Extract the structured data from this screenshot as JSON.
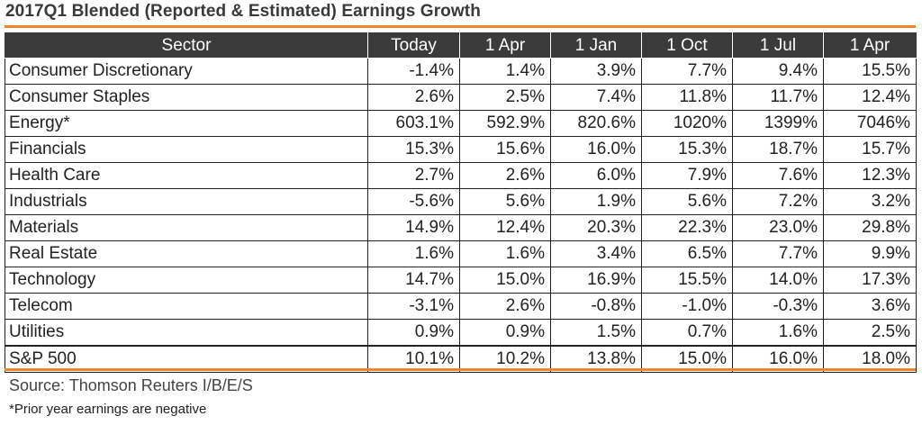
{
  "title": "2017Q1 Blended (Reported & Estimated) Earnings Growth",
  "accent_color": "#f0852f",
  "header_bg": "#3b3b3b",
  "columns": [
    "Sector",
    "Today",
    "1 Apr",
    "1 Jan",
    "1 Oct",
    "1 Jul",
    "1 Apr"
  ],
  "rows": [
    {
      "sector": "Consumer Discretionary",
      "values": [
        "-1.4%",
        "1.4%",
        "3.9%",
        "7.7%",
        "9.4%",
        "15.5%"
      ]
    },
    {
      "sector": "Consumer Staples",
      "values": [
        "2.6%",
        "2.5%",
        "7.4%",
        "11.8%",
        "11.7%",
        "12.4%"
      ]
    },
    {
      "sector": "Energy*",
      "values": [
        "603.1%",
        "592.9%",
        "820.6%",
        "1020%",
        "1399%",
        "7046%"
      ]
    },
    {
      "sector": "Financials",
      "values": [
        "15.3%",
        "15.6%",
        "16.0%",
        "15.3%",
        "18.7%",
        "15.7%"
      ]
    },
    {
      "sector": "Health Care",
      "values": [
        "2.7%",
        "2.6%",
        "6.0%",
        "7.9%",
        "7.6%",
        "12.3%"
      ]
    },
    {
      "sector": "Industrials",
      "values": [
        "-5.6%",
        "5.6%",
        "1.9%",
        "5.6%",
        "7.2%",
        "3.2%"
      ]
    },
    {
      "sector": "Materials",
      "values": [
        "14.9%",
        "12.4%",
        "20.3%",
        "22.3%",
        "23.0%",
        "29.8%"
      ]
    },
    {
      "sector": "Real Estate",
      "values": [
        "1.6%",
        "1.6%",
        "3.4%",
        "6.5%",
        "7.7%",
        "9.9%"
      ]
    },
    {
      "sector": "Technology",
      "values": [
        "14.7%",
        "15.0%",
        "16.9%",
        "15.5%",
        "14.0%",
        "17.3%"
      ]
    },
    {
      "sector": "Telecom",
      "values": [
        "-3.1%",
        "2.6%",
        "-0.8%",
        "-1.0%",
        "-0.3%",
        "3.6%"
      ]
    },
    {
      "sector": "Utilities",
      "values": [
        "0.9%",
        "0.9%",
        "1.5%",
        "0.7%",
        "1.6%",
        "2.5%"
      ]
    }
  ],
  "total": {
    "sector": "S&P 500",
    "values": [
      "10.1%",
      "10.2%",
      "13.8%",
      "15.0%",
      "16.0%",
      "18.0%"
    ]
  },
  "source": "Source: Thomson Reuters I/B/E/S",
  "note": "*Prior year earnings are negative"
}
